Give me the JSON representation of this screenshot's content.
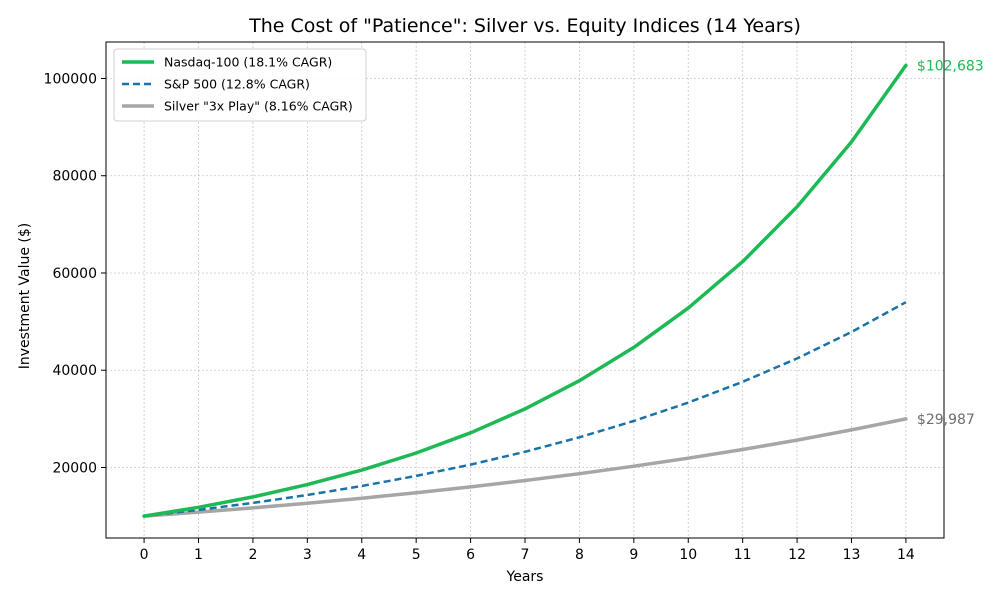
{
  "chart_data": {
    "type": "line",
    "title": "The Cost of \"Patience\": Silver vs. Equity Indices (14 Years)",
    "xlabel": "Years",
    "ylabel": "Investment Value ($)",
    "xlim": [
      -0.7,
      14.7
    ],
    "ylim": [
      5500,
      107500
    ],
    "x": [
      0,
      1,
      2,
      3,
      4,
      5,
      6,
      7,
      8,
      9,
      10,
      11,
      12,
      13,
      14
    ],
    "x_ticks": [
      "0",
      "1",
      "2",
      "3",
      "4",
      "5",
      "6",
      "7",
      "8",
      "9",
      "10",
      "11",
      "12",
      "13",
      "14"
    ],
    "y_ticks": [
      20000,
      40000,
      60000,
      80000,
      100000
    ],
    "y_tick_labels": [
      "20000",
      "40000",
      "60000",
      "80000",
      "100000"
    ],
    "grid": true,
    "legend_position": "top-left",
    "series": [
      {
        "name": "Nasdaq-100 (18.1% CAGR)",
        "color": "#1db954",
        "style": "solid",
        "values": [
          10000,
          11810,
          13948,
          16472,
          19454,
          22975,
          27133,
          32044,
          37844,
          44694,
          52784,
          62338,
          73621,
          86946,
          102683
        ]
      },
      {
        "name": "S&P 500 (12.8% CAGR)",
        "color": "#1a73a8",
        "style": "dashed",
        "values": [
          10000,
          11280,
          12724,
          14353,
          16190,
          18262,
          20600,
          23236,
          26211,
          29566,
          33350,
          37619,
          42434,
          47866,
          53993
        ]
      },
      {
        "name": "Silver \"3x Play\" (8.16% CAGR)",
        "color": "#a6a6a6",
        "style": "solid",
        "values": [
          10000,
          10816,
          11699,
          12653,
          13686,
          14803,
          16011,
          17317,
          18730,
          20258,
          21911,
          23699,
          25633,
          27725,
          29987
        ]
      }
    ],
    "annotations": [
      {
        "text": "$102,683",
        "x": 14,
        "y": 102683,
        "color": "#1db954"
      },
      {
        "text": "$29,987",
        "x": 14,
        "y": 29987,
        "color": "#6e6e6e"
      }
    ]
  }
}
